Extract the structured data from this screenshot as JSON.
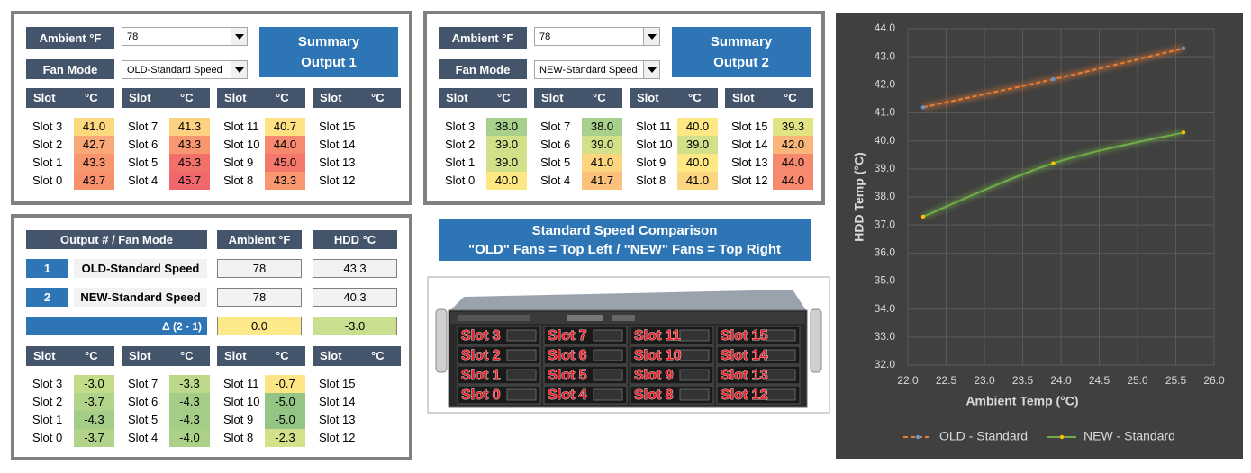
{
  "summary_1": {
    "ambient_label": "Ambient °F",
    "ambient_value": "78",
    "fan_mode_label": "Fan Mode",
    "fan_mode_value": "OLD-Standard Speed",
    "button": [
      "Summary",
      "Output 1"
    ],
    "slots": {
      "header": [
        "Slot",
        "°C"
      ],
      "columns": [
        {
          "slots": [
            "Slot 3",
            "Slot 2",
            "Slot 1",
            "Slot 0"
          ],
          "values": [
            "41.0",
            "42.7",
            "43.3",
            "43.7"
          ],
          "colors": [
            "#fcd97f",
            "#f9a978",
            "#f8976f",
            "#f8906c"
          ]
        },
        {
          "slots": [
            "Slot 7",
            "Slot 6",
            "Slot 5",
            "Slot 4"
          ],
          "values": [
            "41.3",
            "43.3",
            "45.3",
            "45.7"
          ],
          "colors": [
            "#fcd280",
            "#f8976f",
            "#f2706a",
            "#f0686b"
          ]
        },
        {
          "slots": [
            "Slot 11",
            "Slot 10",
            "Slot 9",
            "Slot 8"
          ],
          "values": [
            "40.7",
            "44.0",
            "45.0",
            "43.3"
          ],
          "colors": [
            "#fde182",
            "#f7896e",
            "#f4786b",
            "#f8976f"
          ]
        },
        {
          "slots": [
            "Slot 15",
            "Slot 14",
            "Slot 13",
            "Slot 12"
          ],
          "values": [
            null,
            null,
            null,
            null
          ],
          "colors": [
            null,
            null,
            null,
            null
          ]
        }
      ]
    }
  },
  "summary_2": {
    "ambient_label": "Ambient °F",
    "ambient_value": "78",
    "fan_mode_label": "Fan Mode",
    "fan_mode_value": "NEW-Standard Speed",
    "button": [
      "Summary",
      "Output 2"
    ],
    "slots": {
      "header": [
        "Slot",
        "°C"
      ],
      "columns": [
        {
          "slots": [
            "Slot 3",
            "Slot 2",
            "Slot 1",
            "Slot 0"
          ],
          "values": [
            "38.0",
            "39.0",
            "39.0",
            "40.0"
          ],
          "colors": [
            "#a8d08d",
            "#d3e08a",
            "#d3e08a",
            "#fde883"
          ]
        },
        {
          "slots": [
            "Slot 7",
            "Slot 6",
            "Slot 5",
            "Slot 4"
          ],
          "values": [
            "38.0",
            "39.0",
            "41.0",
            "41.7"
          ],
          "colors": [
            "#a8d08d",
            "#d3e08a",
            "#fcd57f",
            "#fbc07c"
          ]
        },
        {
          "slots": [
            "Slot 11",
            "Slot 10",
            "Slot 9",
            "Slot 8"
          ],
          "values": [
            "40.0",
            "39.0",
            "40.0",
            "41.0"
          ],
          "colors": [
            "#fde883",
            "#d3e08a",
            "#fde883",
            "#fcd57f"
          ]
        },
        {
          "slots": [
            "Slot 15",
            "Slot 14",
            "Slot 13",
            "Slot 12"
          ],
          "values": [
            "39.3",
            "42.0",
            "44.0",
            "44.0"
          ],
          "colors": [
            "#e2e383",
            "#fab67a",
            "#f7896e",
            "#f7896e"
          ]
        }
      ]
    }
  },
  "comparison": {
    "headers": [
      "Output # / Fan Mode",
      "Ambient °F",
      "HDD °C"
    ],
    "rows": [
      {
        "number": "1",
        "mode": "OLD-Standard Speed",
        "ambient": "78",
        "hdd": "43.3"
      },
      {
        "number": "2",
        "mode": "NEW-Standard Speed",
        "ambient": "78",
        "hdd": "40.3"
      }
    ],
    "delta": {
      "label": "Δ (2 - 1)",
      "ambient": "0.0",
      "hdd": "-3.0",
      "ambient_color": "#fde88a",
      "hdd_color": "#c9de8e"
    },
    "slots": {
      "header": [
        "Slot",
        "°C"
      ],
      "columns": [
        {
          "slots": [
            "Slot 3",
            "Slot 2",
            "Slot 1",
            "Slot 0"
          ],
          "values": [
            "-3.0",
            "-3.7",
            "-4.3",
            "-3.7"
          ],
          "colors": [
            "#c3dc8a",
            "#b2d48a",
            "#a4cd88",
            "#b2d48a"
          ]
        },
        {
          "slots": [
            "Slot 7",
            "Slot 6",
            "Slot 5",
            "Slot 4"
          ],
          "values": [
            "-3.3",
            "-4.3",
            "-4.3",
            "-4.0"
          ],
          "colors": [
            "#bbd88b",
            "#a4cd88",
            "#a4cd88",
            "#abd189"
          ]
        },
        {
          "slots": [
            "Slot 11",
            "Slot 10",
            "Slot 9",
            "Slot 8"
          ],
          "values": [
            "-0.7",
            "-5.0",
            "-5.0",
            "-2.3"
          ],
          "colors": [
            "#fde585",
            "#95c584",
            "#95c584",
            "#d3e289"
          ]
        },
        {
          "slots": [
            "Slot 15",
            "Slot 14",
            "Slot 13",
            "Slot 12"
          ],
          "values": [
            null,
            null,
            null,
            null
          ],
          "colors": [
            null,
            null,
            null,
            null
          ]
        }
      ]
    }
  },
  "image_panel": {
    "title": "Standard Speed Comparison",
    "subtitle": "\"OLD\" Fans = Top Left / \"NEW\" Fans = Top Right",
    "slot_labels": [
      [
        "Slot 3",
        "Slot 7",
        "Slot 11",
        "Slot 15"
      ],
      [
        "Slot 2",
        "Slot 6",
        "Slot 10",
        "Slot 14"
      ],
      [
        "Slot 1",
        "Slot 5",
        "Slot 9",
        "Slot 13"
      ],
      [
        "Slot 0",
        "Slot 4",
        "Slot 8",
        "Slot 12"
      ]
    ]
  },
  "chart_data": {
    "type": "line",
    "x_label": "Ambient Temp (°C)",
    "y_label": "HDD Temp (°C)",
    "x": [
      22.2,
      23.9,
      25.6
    ],
    "xlim": [
      22,
      26
    ],
    "xticks": [
      {
        "value": 22,
        "label": "22.0"
      },
      {
        "value": 22.5,
        "label": "22.5"
      },
      {
        "value": 23,
        "label": "23.0"
      },
      {
        "value": 23.5,
        "label": "23.5"
      },
      {
        "value": 24,
        "label": "24.0"
      },
      {
        "value": 24.5,
        "label": "24.5"
      },
      {
        "value": 25,
        "label": "25.0"
      },
      {
        "value": 25.5,
        "label": "25.5"
      },
      {
        "value": 26,
        "label": "26.0"
      }
    ],
    "ylim": [
      32,
      44
    ],
    "yticks": [
      {
        "value": 32,
        "label": "32.0"
      },
      {
        "value": 33,
        "label": "33.0"
      },
      {
        "value": 34,
        "label": "34.0"
      },
      {
        "value": 35,
        "label": "35.0"
      },
      {
        "value": 36,
        "label": "36.0"
      },
      {
        "value": 37,
        "label": "37.0"
      },
      {
        "value": 38,
        "label": "38.0"
      },
      {
        "value": 39,
        "label": "39.0"
      },
      {
        "value": 40,
        "label": "40.0"
      },
      {
        "value": 41,
        "label": "41.0"
      },
      {
        "value": 42,
        "label": "42.0"
      },
      {
        "value": 43,
        "label": "43.0"
      },
      {
        "value": 44,
        "label": "44.0"
      }
    ],
    "grid": true,
    "legend": "bottom",
    "series": [
      {
        "name": "OLD - Standard",
        "color": "#ed7d31",
        "marker_color": "#5b9bd5",
        "style": "dashed",
        "values": [
          41.2,
          42.2,
          43.3
        ]
      },
      {
        "name": "NEW - Standard",
        "color": "#70ad47",
        "marker_color": "#ffc000",
        "style": "solid",
        "values": [
          37.3,
          39.2,
          40.3
        ]
      }
    ]
  }
}
